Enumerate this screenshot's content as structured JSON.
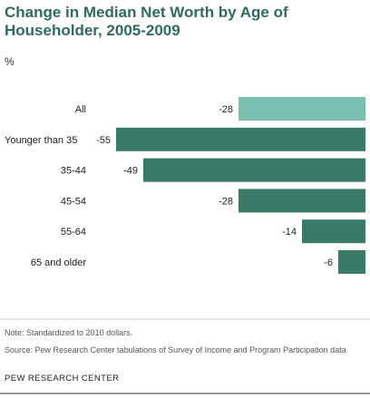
{
  "title": "Change in Median Net Worth by Age of Householder, 2005-2009",
  "unit_label": "%",
  "note": "Note: Standardized to 2010 dollars.",
  "source": "Source:  Pew Research Center tabulations of Survey of Income and Program Participation data",
  "footer": "PEW RESEARCH CENTER",
  "colors": {
    "title": "#2f6b5e",
    "highlight_bar": "#7bbfb0",
    "bar": "#3a7a68"
  },
  "chart_data": {
    "type": "bar",
    "orientation": "horizontal",
    "categories": [
      "All",
      "Younger than 35",
      "35-44",
      "45-54",
      "55-64",
      "65 and older"
    ],
    "values": [
      -28,
      -55,
      -49,
      -28,
      -14,
      -6
    ],
    "value_labels": [
      "-28",
      "-55",
      "-49",
      "-28",
      "-14",
      "-6"
    ],
    "highlight_category": "All",
    "xlim": [
      -55,
      0
    ],
    "grid": false,
    "legend": "none"
  }
}
